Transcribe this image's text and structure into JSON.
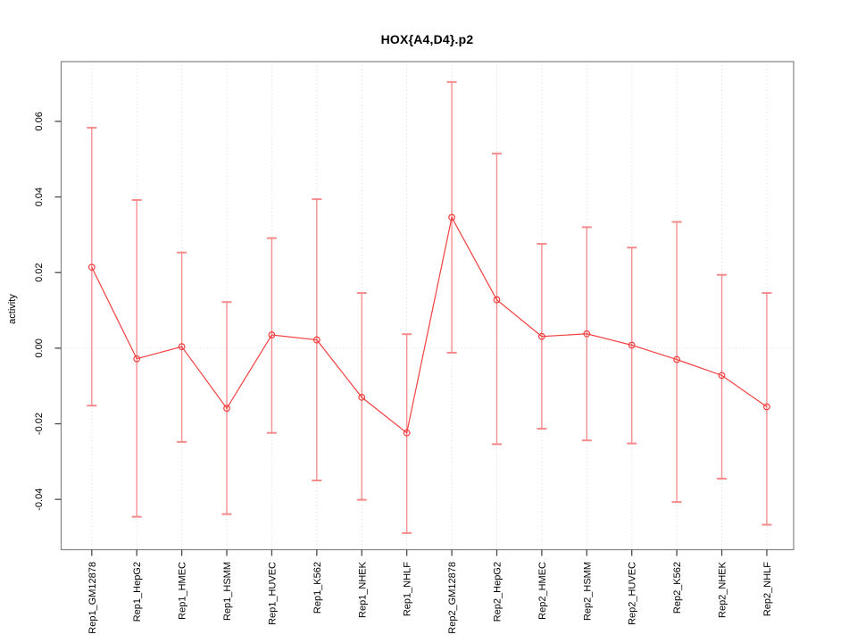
{
  "page": {
    "background": "#ffffff"
  },
  "chart_data": {
    "type": "line",
    "title": "HOX{A4,D4}.p2",
    "ylabel": "activity",
    "xlabel": "",
    "legend": "none",
    "marker": "open-circle",
    "grid": {
      "vertical": "dotted line at every category",
      "horizontal": "dotted line at y=0 only"
    },
    "categories": [
      "Rep1_GM12878",
      "Rep1_HepG2",
      "Rep1_HMEC",
      "Rep1_HSMM",
      "Rep1_HUVEC",
      "Rep1_K562",
      "Rep1_NHEK",
      "Rep1_NHLF",
      "Rep2_GM12878",
      "Rep2_HepG2",
      "Rep2_HMEC",
      "Rep2_HSMM",
      "Rep2_HUVEC",
      "Rep2_K562",
      "Rep2_NHEK",
      "Rep2_NHLF"
    ],
    "series": [
      {
        "name": "activity",
        "values": [
          0.0214,
          -0.0028,
          0.0004,
          -0.0159,
          0.0035,
          0.0022,
          -0.013,
          -0.0224,
          0.0346,
          0.0128,
          0.0031,
          0.0038,
          0.0008,
          -0.003,
          -0.0072,
          -0.0155
        ],
        "error_high": [
          0.0583,
          0.0392,
          0.0253,
          0.0122,
          0.0291,
          0.0394,
          0.0146,
          0.0037,
          0.0704,
          0.0515,
          0.0276,
          0.032,
          0.0266,
          0.0334,
          0.0194,
          0.0146
        ],
        "error_low": [
          -0.0152,
          -0.0446,
          -0.0248,
          -0.0439,
          -0.0224,
          -0.035,
          -0.0401,
          -0.0489,
          -0.0012,
          -0.0254,
          -0.0213,
          -0.0244,
          -0.0252,
          -0.0407,
          -0.0345,
          -0.0467
        ]
      }
    ],
    "yticks": {
      "values": [
        -0.04,
        -0.02,
        0,
        0.02,
        0.04,
        0.06
      ],
      "labels": [
        "-0.04",
        "-0.02",
        "0.00",
        "0.02",
        "0.04",
        "0.06"
      ]
    },
    "ylim": [
      -0.0533,
      0.0758
    ],
    "colors": {
      "line": "#f24040",
      "point": "#f24040",
      "error_bar": "#f58585",
      "grid": "#d8d8d8",
      "zero_line": "#d8d8d8",
      "box": "#848484",
      "tick": "#4a4a4a",
      "text": "#000000"
    }
  }
}
